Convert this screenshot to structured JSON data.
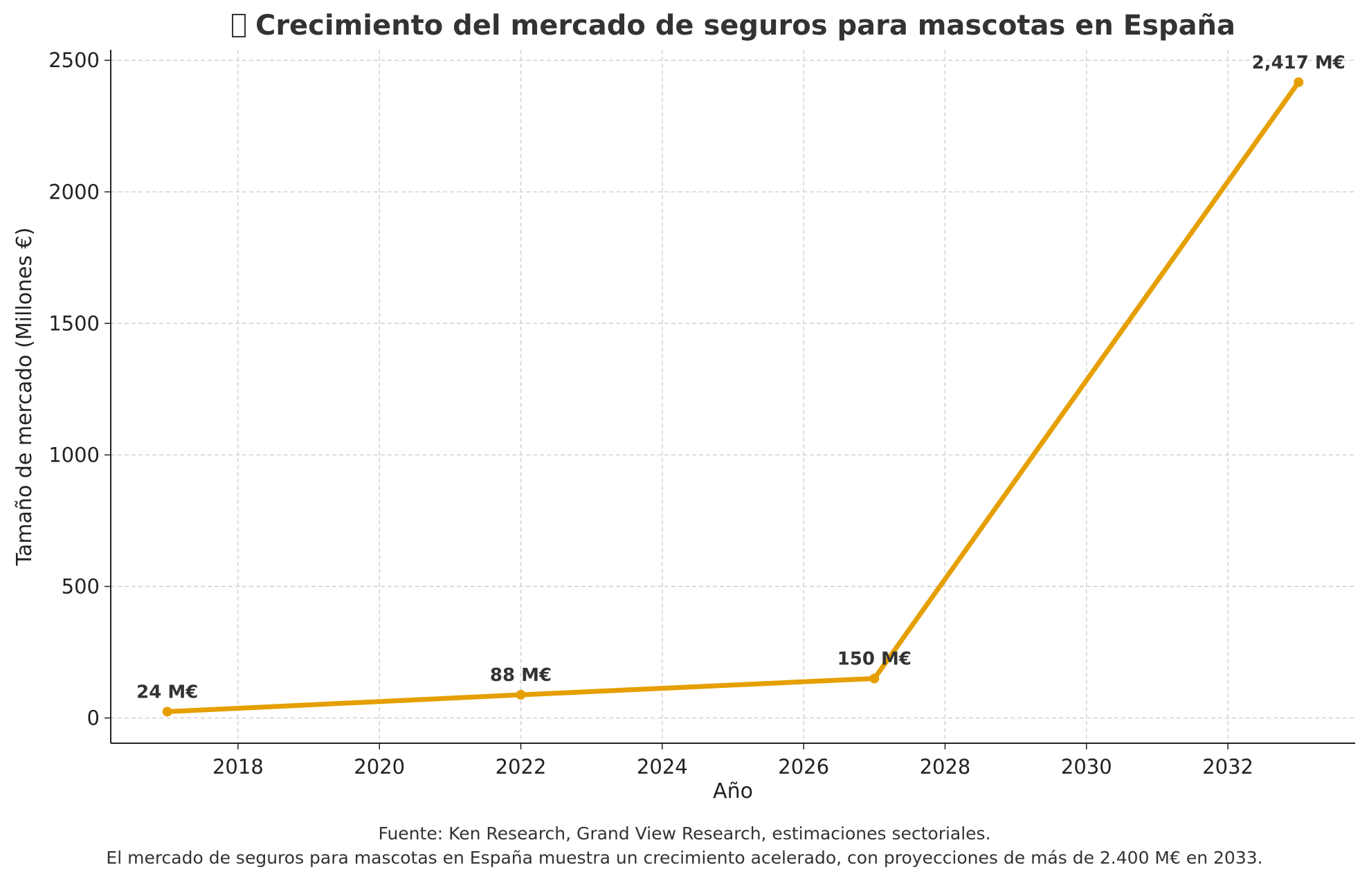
{
  "chart_data": {
    "type": "line",
    "title": "Crecimiento del mercado de seguros para mascotas en España",
    "title_icon": "missing-glyph",
    "xlabel": "Año",
    "ylabel": "Tamaño de mercado (Millones €)",
    "x": [
      2017,
      2022,
      2027,
      2033
    ],
    "series": [
      {
        "values": [
          24,
          88,
          150,
          2417
        ],
        "color": "#E69F00"
      }
    ],
    "data_labels": [
      "24 M€",
      "88 M€",
      "150 M€",
      "2,417 M€"
    ],
    "xticks": [
      2018,
      2020,
      2022,
      2024,
      2026,
      2028,
      2030,
      2032
    ],
    "yticks": [
      0,
      500,
      1000,
      1500,
      2000,
      2500
    ],
    "xlim": [
      2016.2,
      2033.8
    ],
    "ylim": [
      -96,
      2540
    ],
    "grid": true,
    "grid_style": "dashed"
  },
  "footer": {
    "source": "Fuente: Ken Research, Grand View Research, estimaciones sectoriales.",
    "note": "El mercado de seguros para mascotas en España muestra un crecimiento acelerado, con proyecciones de más de 2.400 M€ en 2033."
  }
}
